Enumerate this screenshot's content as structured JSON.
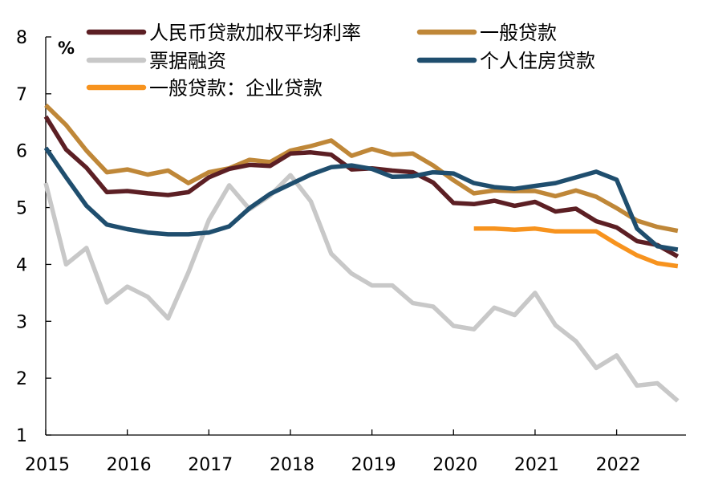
{
  "chart_data": {
    "type": "line",
    "title": "",
    "xlabel": "",
    "ylabel": "%",
    "ylim": [
      1,
      8
    ],
    "yticks": [
      "1",
      "2",
      "3",
      "4",
      "5",
      "6",
      "7",
      "8"
    ],
    "xlim": [
      2015,
      2022.85
    ],
    "xticks": [
      "2015",
      "2016",
      "2017",
      "2018",
      "2019",
      "2020",
      "2021",
      "2022"
    ],
    "grid": false,
    "legend_position": "top",
    "series": [
      {
        "name": "人民币贷款加权平均利率",
        "color": "#5c1f24",
        "x": [
          2015.0,
          2015.25,
          2015.5,
          2015.75,
          2016.0,
          2016.25,
          2016.5,
          2016.75,
          2017.0,
          2017.25,
          2017.5,
          2017.75,
          2018.0,
          2018.25,
          2018.5,
          2018.75,
          2019.0,
          2019.25,
          2019.5,
          2019.75,
          2020.0,
          2020.25,
          2020.5,
          2020.75,
          2021.0,
          2021.25,
          2021.5,
          2021.75,
          2022.0,
          2022.25,
          2022.5,
          2022.75
        ],
        "values": [
          6.6,
          6.02,
          5.7,
          5.27,
          5.29,
          5.25,
          5.22,
          5.27,
          5.53,
          5.68,
          5.75,
          5.73,
          5.95,
          5.97,
          5.93,
          5.67,
          5.69,
          5.65,
          5.62,
          5.44,
          5.08,
          5.06,
          5.12,
          5.03,
          5.1,
          4.93,
          4.98,
          4.76,
          4.65,
          4.41,
          4.34,
          4.14
        ]
      },
      {
        "name": "一般贷款",
        "color": "#bf8738",
        "x": [
          2015.0,
          2015.25,
          2015.5,
          2015.75,
          2016.0,
          2016.25,
          2016.5,
          2016.75,
          2017.0,
          2017.25,
          2017.5,
          2017.75,
          2018.0,
          2018.25,
          2018.5,
          2018.75,
          2019.0,
          2019.25,
          2019.5,
          2019.75,
          2020.0,
          2020.25,
          2020.5,
          2020.75,
          2021.0,
          2021.25,
          2021.5,
          2021.75,
          2022.0,
          2022.25,
          2022.5,
          2022.75
        ],
        "values": [
          6.8,
          6.45,
          6.0,
          5.62,
          5.67,
          5.58,
          5.65,
          5.43,
          5.62,
          5.69,
          5.84,
          5.8,
          6.0,
          6.08,
          6.18,
          5.91,
          6.03,
          5.93,
          5.95,
          5.74,
          5.48,
          5.25,
          5.3,
          5.29,
          5.29,
          5.2,
          5.3,
          5.19,
          4.99,
          4.77,
          4.66,
          4.59
        ]
      },
      {
        "name": "票据融资",
        "color": "#c8c8c8",
        "x": [
          2015.0,
          2015.25,
          2015.5,
          2015.75,
          2016.0,
          2016.25,
          2016.5,
          2016.75,
          2017.0,
          2017.25,
          2017.5,
          2017.75,
          2018.0,
          2018.25,
          2018.5,
          2018.75,
          2019.0,
          2019.25,
          2019.5,
          2019.75,
          2020.0,
          2020.25,
          2020.5,
          2020.75,
          2021.0,
          2021.25,
          2021.5,
          2021.75,
          2022.0,
          2022.25,
          2022.5,
          2022.75
        ],
        "values": [
          5.43,
          4.0,
          4.29,
          3.33,
          3.61,
          3.43,
          3.05,
          3.86,
          4.78,
          5.39,
          4.97,
          5.21,
          5.57,
          5.11,
          4.19,
          3.84,
          3.63,
          3.63,
          3.32,
          3.26,
          2.92,
          2.86,
          3.24,
          3.11,
          3.5,
          2.93,
          2.65,
          2.18,
          2.4,
          1.87,
          1.91,
          1.6
        ]
      },
      {
        "name": "个人住房贷款",
        "color": "#1f4e6e",
        "x": [
          2015.0,
          2015.25,
          2015.5,
          2015.75,
          2016.0,
          2016.25,
          2016.5,
          2016.75,
          2017.0,
          2017.25,
          2017.5,
          2017.75,
          2018.0,
          2018.25,
          2018.5,
          2018.75,
          2019.0,
          2019.25,
          2019.5,
          2019.75,
          2020.0,
          2020.25,
          2020.5,
          2020.75,
          2021.0,
          2021.25,
          2021.5,
          2021.75,
          2022.0,
          2022.25,
          2022.5,
          2022.75
        ],
        "values": [
          6.05,
          5.53,
          5.03,
          4.7,
          4.62,
          4.56,
          4.53,
          4.53,
          4.56,
          4.67,
          4.99,
          5.24,
          5.41,
          5.58,
          5.71,
          5.74,
          5.68,
          5.54,
          5.55,
          5.62,
          5.6,
          5.43,
          5.36,
          5.33,
          5.38,
          5.43,
          5.53,
          5.63,
          5.49,
          4.63,
          4.32,
          4.26
        ]
      },
      {
        "name": "一般贷款：企业贷款",
        "color": "#f7931e",
        "x": [
          2020.25,
          2020.5,
          2020.75,
          2021.0,
          2021.25,
          2021.5,
          2021.75,
          2022.0,
          2022.25,
          2022.5,
          2022.75
        ],
        "values": [
          4.63,
          4.63,
          4.61,
          4.63,
          4.58,
          4.58,
          4.58,
          4.36,
          4.16,
          4.02,
          3.97
        ]
      }
    ]
  }
}
